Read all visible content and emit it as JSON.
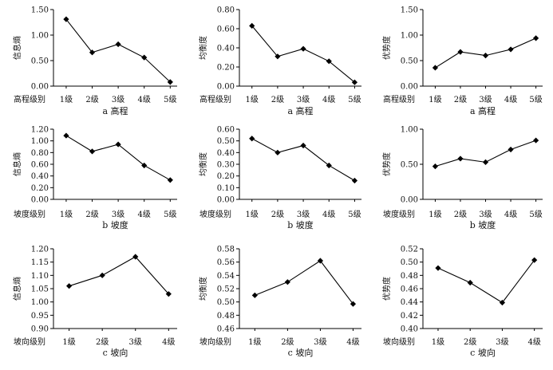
{
  "chart_data": [
    {
      "type": "line",
      "title": "",
      "caption": "a 高程",
      "xlabel": "高程级别",
      "ylabel": "信息熵",
      "categories": [
        "1级",
        "2级",
        "3级",
        "4级",
        "5级"
      ],
      "values": [
        1.31,
        0.66,
        0.82,
        0.56,
        0.08
      ],
      "ylim": [
        0,
        1.5
      ],
      "yticks": [
        "0.00",
        "0.50",
        "1.00",
        "1.50"
      ]
    },
    {
      "type": "line",
      "title": "",
      "caption": "a 高程",
      "xlabel": "高程级别",
      "ylabel": "均衡度",
      "categories": [
        "1级",
        "2级",
        "3级",
        "4级",
        "5级"
      ],
      "values": [
        0.63,
        0.31,
        0.39,
        0.26,
        0.04
      ],
      "ylim": [
        0,
        0.8
      ],
      "yticks": [
        "0.00",
        "0.20",
        "0.40",
        "0.60",
        "0.80"
      ]
    },
    {
      "type": "line",
      "title": "",
      "caption": "a 高程",
      "xlabel": "高程级别",
      "ylabel": "优势度",
      "categories": [
        "1级",
        "2级",
        "3级",
        "4级",
        "5级"
      ],
      "values": [
        0.36,
        0.67,
        0.6,
        0.72,
        0.94
      ],
      "ylim": [
        0,
        1.5
      ],
      "yticks": [
        "0.00",
        "0.50",
        "1.00",
        "1.50"
      ]
    },
    {
      "type": "line",
      "title": "",
      "caption": "b 坡度",
      "xlabel": "坡度级别",
      "ylabel": "信息熵",
      "categories": [
        "1级",
        "2级",
        "3级",
        "4级",
        "5级"
      ],
      "values": [
        1.09,
        0.82,
        0.94,
        0.58,
        0.33
      ],
      "ylim": [
        0,
        1.2
      ],
      "yticks": [
        "0.00",
        "0.20",
        "0.40",
        "0.60",
        "0.80",
        "1.00",
        "1.20"
      ]
    },
    {
      "type": "line",
      "title": "",
      "caption": "b 坡度",
      "xlabel": "坡度级别",
      "ylabel": "均衡度",
      "categories": [
        "1级",
        "2级",
        "3级",
        "4级",
        "5级"
      ],
      "values": [
        0.52,
        0.4,
        0.46,
        0.29,
        0.16
      ],
      "ylim": [
        0,
        0.6
      ],
      "yticks": [
        "0.00",
        "0.10",
        "0.20",
        "0.30",
        "0.40",
        "0.50",
        "0.60"
      ]
    },
    {
      "type": "line",
      "title": "",
      "caption": "b 坡度",
      "xlabel": "坡度级别",
      "ylabel": "优势度",
      "categories": [
        "1级",
        "2级",
        "3级",
        "4级",
        "5级"
      ],
      "values": [
        0.47,
        0.58,
        0.53,
        0.71,
        0.84
      ],
      "ylim": [
        0,
        1
      ],
      "yticks": [
        "0.00",
        "0.50",
        "1.00"
      ]
    },
    {
      "type": "line",
      "title": "",
      "caption": "c 坡向",
      "xlabel": "坡向级别",
      "ylabel": "信息熵",
      "categories": [
        "1级",
        "2级",
        "3级",
        "4级"
      ],
      "values": [
        1.06,
        1.1,
        1.17,
        1.03
      ],
      "ylim": [
        0.9,
        1.2
      ],
      "yticks": [
        "0.90",
        "0.95",
        "1.00",
        "1.05",
        "1.10",
        "1.15",
        "1.20"
      ]
    },
    {
      "type": "line",
      "title": "",
      "caption": "c 坡向",
      "xlabel": "坡向级别",
      "ylabel": "均衡度",
      "categories": [
        "1级",
        "2级",
        "3级",
        "4级"
      ],
      "values": [
        0.51,
        0.53,
        0.562,
        0.497
      ],
      "ylim": [
        0.46,
        0.58
      ],
      "yticks": [
        "0.46",
        "0.48",
        "0.50",
        "0.52",
        "0.54",
        "0.56",
        "0.58"
      ]
    },
    {
      "type": "line",
      "title": "",
      "caption": "c 坡向",
      "xlabel": "坡向级别",
      "ylabel": "优势度",
      "categories": [
        "1级",
        "2级",
        "3级",
        "4级"
      ],
      "values": [
        0.491,
        0.469,
        0.439,
        0.503
      ],
      "ylim": [
        0.4,
        0.52
      ],
      "yticks": [
        "0.40",
        "0.42",
        "0.44",
        "0.46",
        "0.48",
        "0.50",
        "0.52"
      ]
    }
  ]
}
